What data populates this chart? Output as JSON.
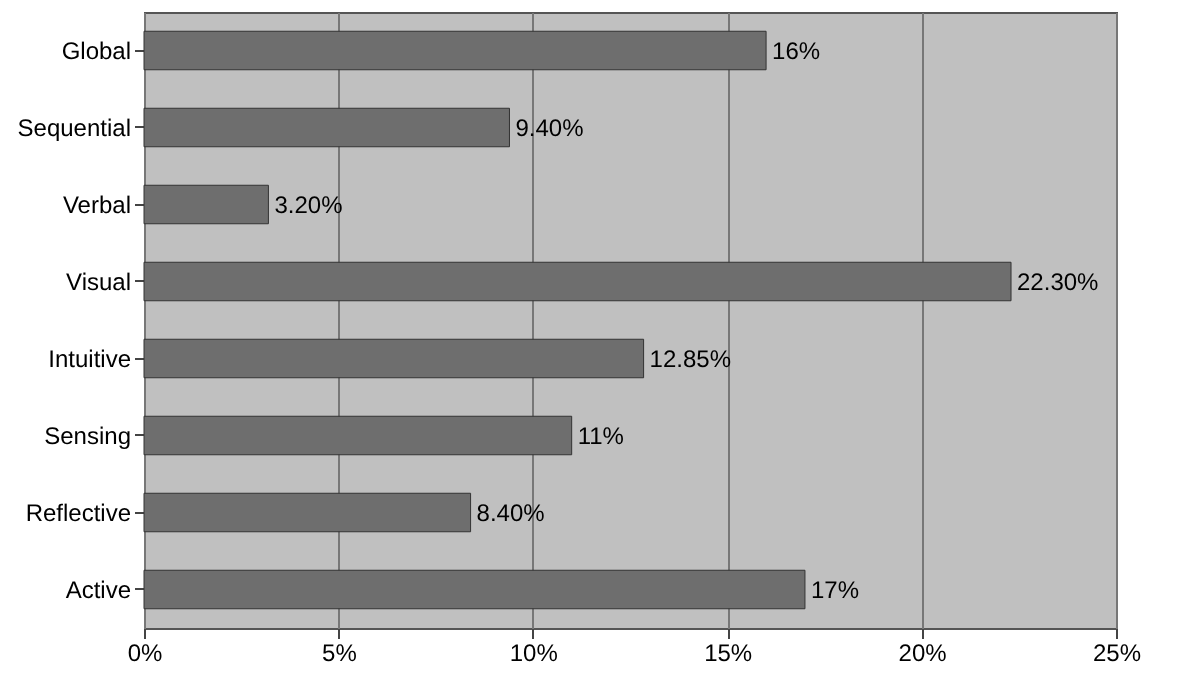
{
  "chart_data": {
    "type": "bar",
    "orientation": "horizontal",
    "categories": [
      "Global",
      "Sequential",
      "Verbal",
      "Visual",
      "Intuitive",
      "Sensing",
      "Reflective",
      "Active"
    ],
    "values": [
      16,
      9.4,
      3.2,
      22.3,
      12.85,
      11,
      8.4,
      17
    ],
    "value_labels": [
      "16%",
      "9.40%",
      "3.20%",
      "22.30%",
      "12.85%",
      "11%",
      "8.40%",
      "17%"
    ],
    "color": "#6e6e6e",
    "xlim": [
      0,
      25
    ],
    "xticks": [
      {
        "value": 0,
        "label": "0%"
      },
      {
        "value": 5,
        "label": "5%"
      },
      {
        "value": 10,
        "label": "10%"
      },
      {
        "value": 15,
        "label": "15%"
      },
      {
        "value": 20,
        "label": "20%"
      },
      {
        "value": 25,
        "label": "25%"
      }
    ],
    "grid": "x"
  }
}
